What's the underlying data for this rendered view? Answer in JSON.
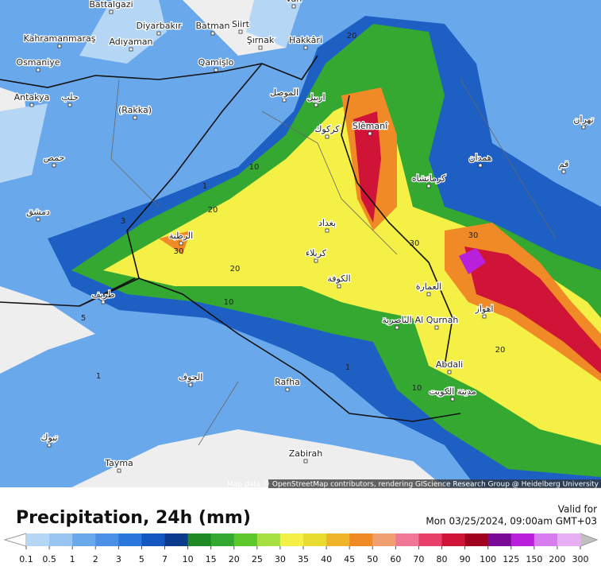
{
  "map": {
    "places": [
      "Battalgazi",
      "Diyarbakır",
      "Batman",
      "Siirt",
      "Van",
      "Kahramanmaraş",
      "Adıyaman",
      "Şırnak",
      "Hakkâri",
      "Osmaniye",
      "Qamişlo",
      "Antakya",
      "(Rakka)",
      "Slêmanî",
      "Al Qurnah",
      "Abdali",
      "Rafha",
      "Zabirah",
      "Tayma",
      "حلب",
      "الموصل",
      "اربيل",
      "كركوك",
      "بغداد",
      "كربلاء",
      "الكوفة",
      "الناصرية",
      "العمارة",
      "اهواز",
      "مدينة الكويت",
      "الجوف",
      "الرطبة",
      "طريف",
      "دمشق",
      "حمص",
      "تبوك",
      "تهران",
      "قم",
      "همدان",
      "كرمانشاه"
    ],
    "contour_labels": [
      20,
      10,
      20,
      30,
      20,
      10,
      1,
      3,
      30,
      30,
      20,
      10,
      1,
      1,
      5
    ],
    "attribution": "Map data © OpenStreetMap contributors, rendering GIScience Research Group @ Heidelberg University"
  },
  "legend": {
    "title": "Precipitation, 24h (mm)",
    "valid_label": "Valid for",
    "valid_time": "Mon 03/25/2024, 09:00am GMT+03",
    "ticks": [
      0.1,
      0.5,
      1,
      2,
      3,
      5,
      7,
      10,
      15,
      20,
      25,
      30,
      35,
      40,
      45,
      50,
      60,
      70,
      80,
      90,
      100,
      125,
      150,
      200,
      300
    ],
    "colors": [
      "#b6d6f5",
      "#98c4f2",
      "#6aa8ec",
      "#4a90e6",
      "#2a78dc",
      "#1456c0",
      "#0c3a8c",
      "#1f8a23",
      "#35a832",
      "#5cc82c",
      "#a6e040",
      "#f4f046",
      "#e8dc30",
      "#f0b42a",
      "#f08a26",
      "#f0a070",
      "#f07896",
      "#e8406a",
      "#d01438",
      "#a0001e",
      "#7a0a96",
      "#b820dc",
      "#d87cf0",
      "#e8b0f4"
    ],
    "under_color": "#ffffff",
    "over_color": "#c0c0c0"
  }
}
